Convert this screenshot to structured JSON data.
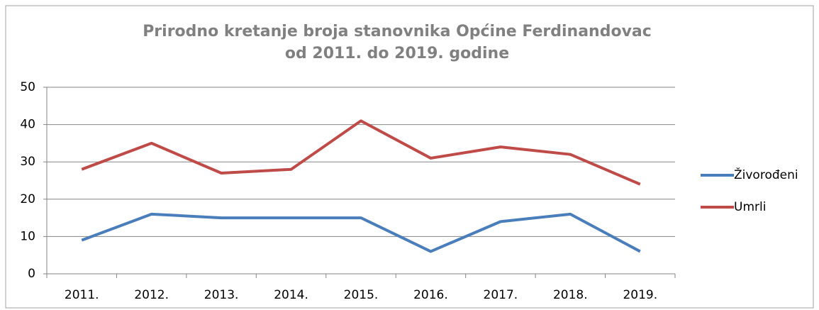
{
  "chart_data": {
    "type": "line",
    "title": [
      "Prirodno kretanje broja stanovnika Općine Ferdinandovac",
      "od 2011. do 2019. godine"
    ],
    "categories": [
      "2011.",
      "2012.",
      "2013.",
      "2014.",
      "2015.",
      "2016.",
      "2017.",
      "2018.",
      "2019."
    ],
    "series": [
      {
        "name": "Živorođeni",
        "color": "#4a7ebb",
        "values": [
          9,
          16,
          15,
          15,
          15,
          6,
          14,
          16,
          6
        ]
      },
      {
        "name": "Umrli",
        "color": "#be4b48",
        "values": [
          28,
          35,
          27,
          28,
          41,
          31,
          34,
          32,
          24
        ]
      }
    ],
    "ylim": [
      0,
      50
    ],
    "yticks": [
      0,
      10,
      20,
      30,
      40,
      50
    ],
    "grid": true,
    "legend": "right"
  }
}
